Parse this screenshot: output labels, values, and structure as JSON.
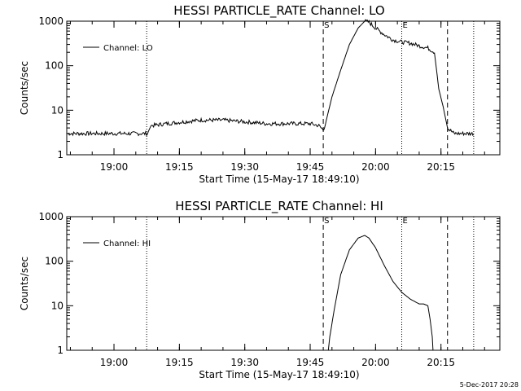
{
  "figure": {
    "timestamp": "5-Dec-2017 20:28"
  },
  "chart_data": [
    {
      "type": "line",
      "title": "HESSI PARTICLE_RATE Channel: LO",
      "xlabel": "Start Time (15-May-17 18:49:10)",
      "ylabel": "Counts/sec",
      "yscale": "log",
      "xlim": [
        "18:49:10",
        "20:28:30"
      ],
      "ylim": [
        1,
        1000
      ],
      "xticks": [
        "19:00",
        "19:15",
        "19:30",
        "19:45",
        "20:00",
        "20:15"
      ],
      "yticks": [
        "1",
        "10",
        "100",
        "1000"
      ],
      "legend": {
        "position": "top-left",
        "label": "Channel: LO"
      },
      "markers": {
        "S": "19:48:00",
        "E": "20:06:00"
      },
      "dotted_lines": [
        "19:07:30",
        "20:06:00",
        "20:22:30"
      ],
      "dashed_lines": [
        "19:48:00",
        "20:16:30"
      ],
      "series": [
        {
          "name": "Channel: LO",
          "x": [
            "18:49:10",
            "18:55:00",
            "19:00:00",
            "19:05:00",
            "19:07:40",
            "19:08:30",
            "19:12:00",
            "19:16:00",
            "19:20:00",
            "19:25:00",
            "19:30:00",
            "19:35:00",
            "19:40:00",
            "19:45:00",
            "19:47:00",
            "19:48:00",
            "19:48:30",
            "19:50:00",
            "19:52:00",
            "19:54:00",
            "19:56:00",
            "19:57:30",
            "19:58:30",
            "20:00:00",
            "20:02:00",
            "20:04:00",
            "20:06:00",
            "20:08:00",
            "20:10:00",
            "20:12:00",
            "20:13:30",
            "20:14:30",
            "20:15:30",
            "20:16:30",
            "20:18:00",
            "20:20:00",
            "20:22:30"
          ],
          "values": [
            3,
            3,
            3,
            3,
            3,
            4.5,
            5,
            5.5,
            6,
            6,
            5.5,
            5,
            5,
            5,
            4.5,
            3.6,
            5,
            20,
            80,
            300,
            700,
            1000,
            950,
            700,
            500,
            380,
            340,
            320,
            280,
            250,
            200,
            30,
            12,
            4,
            3,
            3,
            3
          ]
        }
      ]
    },
    {
      "type": "line",
      "title": "HESSI PARTICLE_RATE Channel: HI",
      "xlabel": "Start Time (15-May-17 18:49:10)",
      "ylabel": "Counts/sec",
      "yscale": "log",
      "xlim": [
        "18:49:10",
        "20:28:30"
      ],
      "ylim": [
        1,
        1000
      ],
      "xticks": [
        "19:00",
        "19:15",
        "19:30",
        "19:45",
        "20:00",
        "20:15"
      ],
      "yticks": [
        "1",
        "10",
        "100",
        "1000"
      ],
      "legend": {
        "position": "top-left",
        "label": "Channel: HI"
      },
      "markers": {
        "S": "19:48:00",
        "E": "20:06:00"
      },
      "dotted_lines": [
        "19:07:30",
        "20:06:00",
        "20:22:30"
      ],
      "dashed_lines": [
        "19:48:00",
        "20:16:30"
      ],
      "series": [
        {
          "name": "Channel: HI",
          "x": [
            "19:49:10",
            "19:49:30",
            "19:50:30",
            "19:52:00",
            "19:54:00",
            "19:56:00",
            "19:57:30",
            "19:58:30",
            "20:00:00",
            "20:02:00",
            "20:04:00",
            "20:06:00",
            "20:08:00",
            "20:10:00",
            "20:11:00",
            "20:12:00",
            "20:12:30",
            "20:13:00",
            "20:13:10"
          ],
          "values": [
            1,
            2,
            8,
            50,
            180,
            330,
            380,
            330,
            200,
            80,
            35,
            20,
            14,
            11,
            11,
            10,
            5,
            2,
            1
          ]
        }
      ]
    }
  ]
}
